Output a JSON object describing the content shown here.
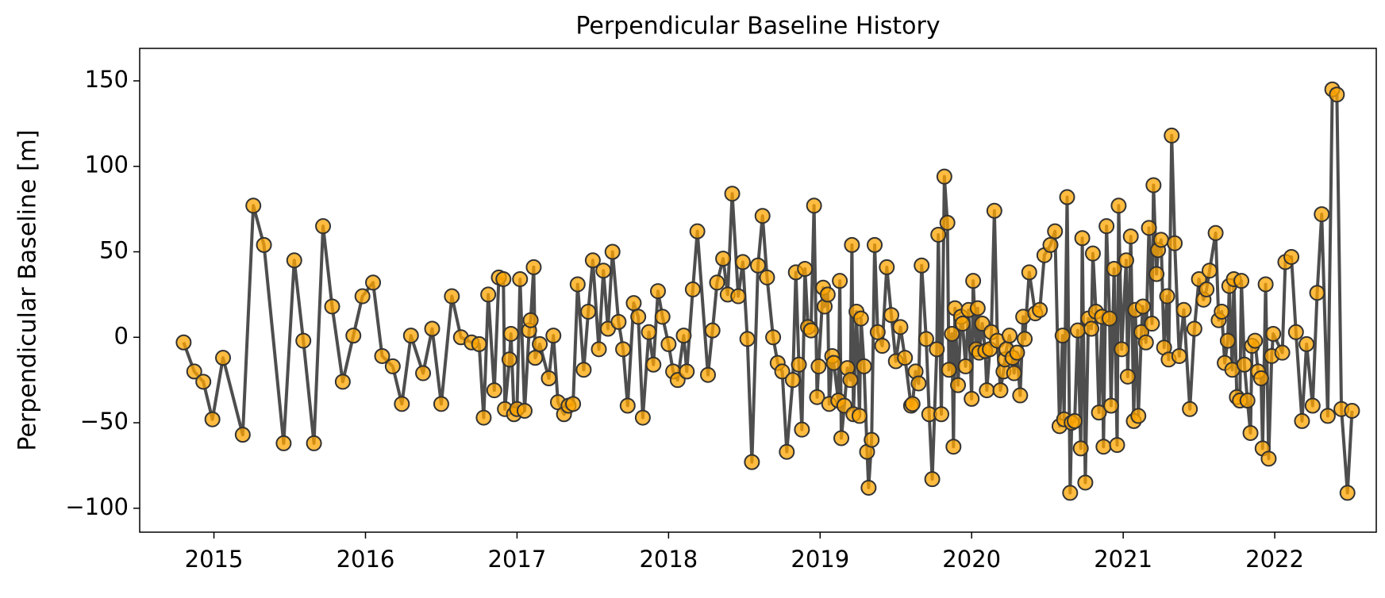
{
  "chart_data": {
    "type": "line",
    "title": "Perpendicular Baseline History",
    "ylabel": "Perpendicular Baseline [m]",
    "x": [
      2014.8,
      2014.87,
      2014.93,
      2014.99,
      2015.06,
      2015.19,
      2015.26,
      2015.33,
      2015.46,
      2015.53,
      2015.59,
      2015.66,
      2015.72,
      2015.78,
      2015.85,
      2015.92,
      2015.98,
      2016.05,
      2016.11,
      2016.18,
      2016.24,
      2016.3,
      2016.38,
      2016.44,
      2016.5,
      2016.57,
      2016.63,
      2016.7,
      2016.75,
      2016.78,
      2016.81,
      2016.85,
      2016.88,
      2016.91,
      2016.92,
      2016.95,
      2016.96,
      2016.98,
      2017.0,
      2017.02,
      2017.05,
      2017.08,
      2017.09,
      2017.11,
      2017.12,
      2017.15,
      2017.21,
      2017.24,
      2017.27,
      2017.31,
      2017.34,
      2017.37,
      2017.4,
      2017.44,
      2017.47,
      2017.5,
      2017.54,
      2017.57,
      2017.6,
      2017.63,
      2017.67,
      2017.7,
      2017.73,
      2017.77,
      2017.8,
      2017.83,
      2017.87,
      2017.9,
      2017.93,
      2017.96,
      2018.0,
      2018.03,
      2018.06,
      2018.1,
      2018.12,
      2018.16,
      2018.19,
      2018.26,
      2018.29,
      2018.32,
      2018.36,
      2018.39,
      2018.42,
      2018.46,
      2018.49,
      2018.52,
      2018.55,
      2018.59,
      2018.62,
      2018.65,
      2018.69,
      2018.72,
      2018.75,
      2018.78,
      2018.82,
      2018.84,
      2018.86,
      2018.88,
      2018.9,
      2018.92,
      2018.94,
      2018.96,
      2018.98,
      2018.99,
      2019.02,
      2019.03,
      2019.05,
      2019.06,
      2019.08,
      2019.09,
      2019.12,
      2019.13,
      2019.14,
      2019.16,
      2019.18,
      2019.2,
      2019.21,
      2019.22,
      2019.24,
      2019.26,
      2019.27,
      2019.29,
      2019.31,
      2019.32,
      2019.34,
      2019.36,
      2019.38,
      2019.41,
      2019.44,
      2019.47,
      2019.5,
      2019.53,
      2019.56,
      2019.6,
      2019.61,
      2019.63,
      2019.65,
      2019.67,
      2019.7,
      2019.72,
      2019.74,
      2019.77,
      2019.78,
      2019.8,
      2019.82,
      2019.84,
      2019.85,
      2019.87,
      2019.88,
      2019.89,
      2019.91,
      2019.93,
      2019.94,
      2019.96,
      2019.98,
      2020.0,
      2020.01,
      2020.03,
      2020.04,
      2020.05,
      2020.07,
      2020.09,
      2020.1,
      2020.12,
      2020.13,
      2020.15,
      2020.17,
      2020.19,
      2020.21,
      2020.22,
      2020.23,
      2020.25,
      2020.27,
      2020.28,
      2020.3,
      2020.32,
      2020.34,
      2020.35,
      2020.38,
      2020.42,
      2020.45,
      2020.48,
      2020.52,
      2020.55,
      2020.58,
      2020.6,
      2020.61,
      2020.63,
      2020.65,
      2020.66,
      2020.68,
      2020.7,
      2020.72,
      2020.73,
      2020.75,
      2020.77,
      2020.79,
      2020.8,
      2020.82,
      2020.84,
      2020.86,
      2020.87,
      2020.89,
      2020.91,
      2020.92,
      2020.94,
      2020.96,
      2020.97,
      2020.99,
      2021.02,
      2021.03,
      2021.05,
      2021.07,
      2021.08,
      2021.1,
      2021.12,
      2021.13,
      2021.15,
      2021.17,
      2021.19,
      2021.2,
      2021.22,
      2021.23,
      2021.25,
      2021.27,
      2021.29,
      2021.3,
      2021.32,
      2021.34,
      2021.37,
      2021.4,
      2021.44,
      2021.47,
      2021.5,
      2021.53,
      2021.55,
      2021.57,
      2021.61,
      2021.63,
      2021.65,
      2021.67,
      2021.69,
      2021.7,
      2021.72,
      2021.73,
      2021.75,
      2021.77,
      2021.78,
      2021.8,
      2021.82,
      2021.84,
      2021.85,
      2021.87,
      2021.89,
      2021.91,
      2021.92,
      2021.94,
      2021.96,
      2021.98,
      2021.99,
      2022.05,
      2022.07,
      2022.11,
      2022.14,
      2022.18,
      2022.21,
      2022.25,
      2022.28,
      2022.31,
      2022.35,
      2022.38,
      2022.41,
      2022.44,
      2022.48,
      2022.51
    ],
    "values": [
      -3,
      -20,
      -26,
      -48,
      -12,
      -57,
      77,
      54,
      -62,
      45,
      -2,
      -62,
      65,
      18,
      -26,
      1,
      24,
      32,
      -11,
      -17,
      -39,
      1,
      -21,
      5,
      -39,
      24,
      0,
      -3,
      -4,
      -47,
      25,
      -31,
      35,
      34,
      -42,
      -13,
      2,
      -45,
      -42,
      34,
      -43,
      4,
      10,
      41,
      -12,
      -4,
      -24,
      1,
      -38,
      -45,
      -40,
      -39,
      31,
      -19,
      15,
      45,
      -7,
      39,
      5,
      50,
      9,
      -7,
      -40,
      20,
      12,
      -47,
      3,
      -16,
      27,
      12,
      -4,
      -20,
      -25,
      1,
      -20,
      28,
      62,
      -22,
      4,
      32,
      46,
      25,
      84,
      24,
      44,
      -1,
      -73,
      42,
      71,
      35,
      0,
      -15,
      -20,
      -67,
      -25,
      38,
      -16,
      -54,
      40,
      6,
      4,
      77,
      -35,
      -17,
      29,
      18,
      25,
      -39,
      -11,
      -15,
      -37,
      33,
      -59,
      -40,
      -18,
      -25,
      54,
      -45,
      15,
      -46,
      11,
      -17,
      -67,
      -88,
      -60,
      54,
      3,
      -5,
      41,
      13,
      -14,
      6,
      -12,
      -40,
      -39,
      -20,
      -27,
      42,
      -1,
      -45,
      -83,
      -7,
      60,
      -45,
      94,
      67,
      -19,
      2,
      -64,
      17,
      -28,
      12,
      8,
      -17,
      16,
      -36,
      33,
      -7,
      17,
      -9,
      8,
      -8,
      -31,
      -7,
      3,
      74,
      -2,
      -31,
      -20,
      -13,
      -7,
      1,
      -12,
      -21,
      -9,
      -34,
      12,
      -1,
      38,
      14,
      16,
      48,
      54,
      62,
      -52,
      1,
      -48,
      82,
      -91,
      -50,
      -49,
      4,
      -65,
      58,
      -85,
      11,
      5,
      49,
      15,
      -44,
      12,
      -64,
      65,
      11,
      -40,
      40,
      -63,
      77,
      -7,
      45,
      -23,
      59,
      -49,
      16,
      -46,
      3,
      18,
      -3,
      64,
      8,
      89,
      37,
      51,
      57,
      -6,
      24,
      -13,
      118,
      55,
      -11,
      16,
      -42,
      5,
      34,
      22,
      28,
      39,
      61,
      10,
      15,
      -15,
      -2,
      30,
      -19,
      34,
      -35,
      -37,
      33,
      -16,
      -37,
      -56,
      -5,
      -2,
      -20,
      -24,
      -65,
      31,
      -71,
      -11,
      2,
      -9,
      44,
      47,
      3,
      -49,
      -4,
      -40,
      26,
      72,
      -46,
      145,
      142,
      -42,
      -91,
      -43
    ],
    "line_color": "#444444",
    "marker_color": "#ffa500",
    "marker_edge_color": "#333333",
    "xlim": [
      2014.51,
      2022.67
    ],
    "xticks": [
      2015,
      2016,
      2017,
      2018,
      2019,
      2020,
      2021,
      2022
    ],
    "ylim": [
      -114,
      169
    ],
    "yticks": [
      {
        "value": -100,
        "label": "−100"
      },
      {
        "value": -50,
        "label": "−50"
      },
      0,
      50,
      100,
      150
    ],
    "grid": false
  }
}
